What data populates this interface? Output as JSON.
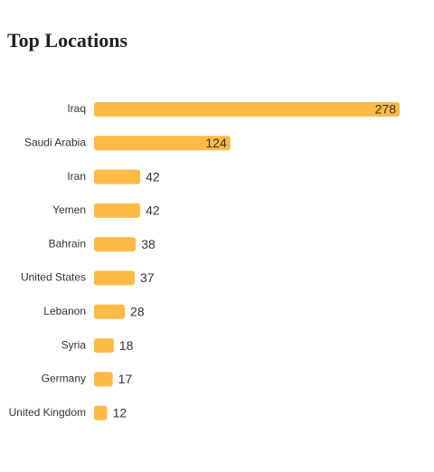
{
  "chart_data": {
    "type": "bar",
    "orientation": "horizontal",
    "title": "Top Locations",
    "categories": [
      "Iraq",
      "Saudi Arabia",
      "Iran",
      "Yemen",
      "Bahrain",
      "United States",
      "Lebanon",
      "Syria",
      "Germany",
      "United Kingdom"
    ],
    "values": [
      278,
      124,
      42,
      42,
      38,
      37,
      28,
      18,
      17,
      12
    ],
    "color": "#fdba45"
  }
}
